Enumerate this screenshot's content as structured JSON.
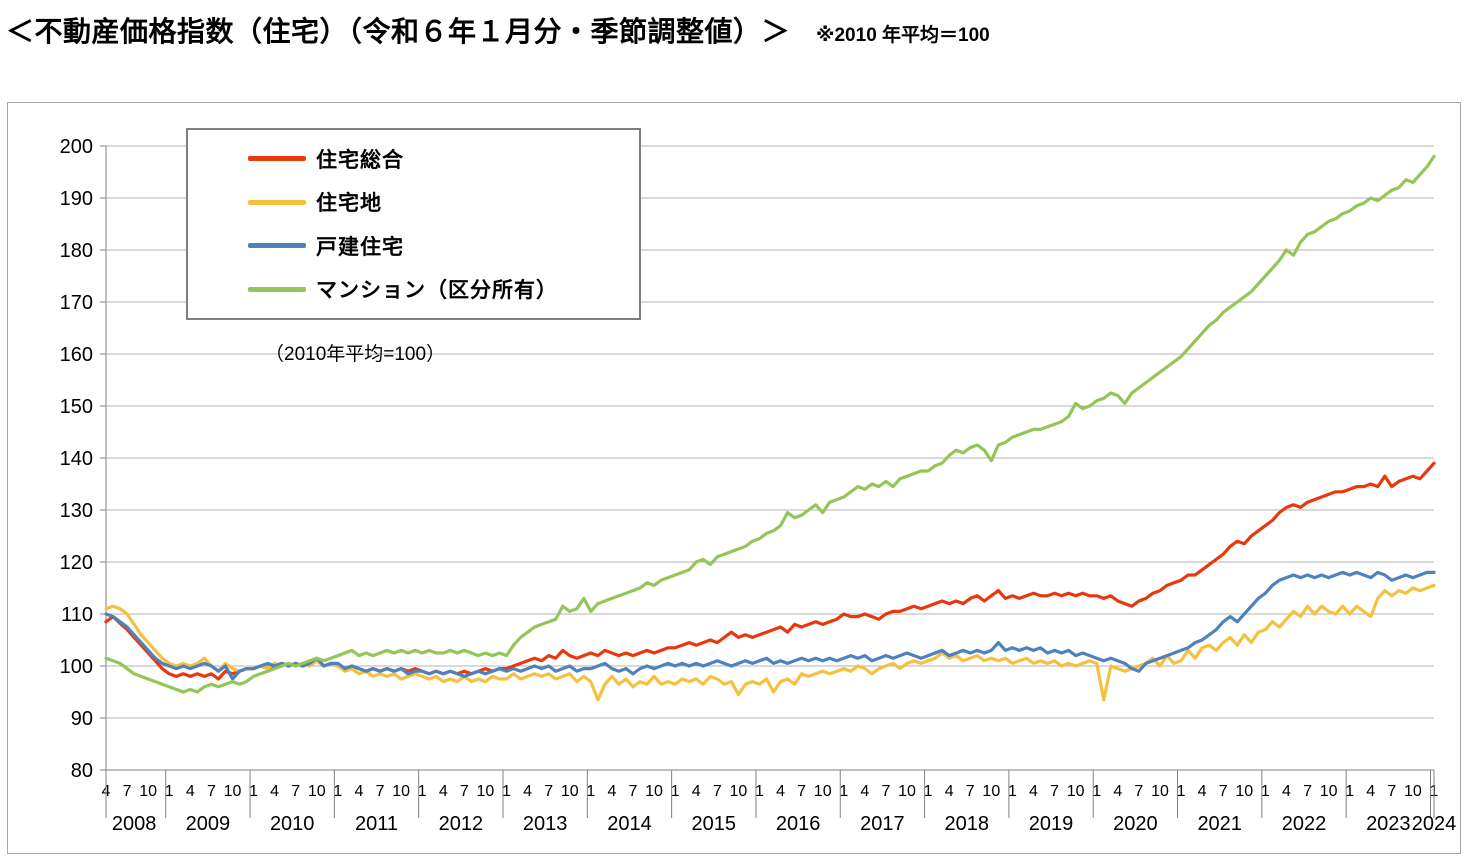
{
  "title": "＜不動産価格指数（住宅）（令和６年１月分・季節調整値）＞",
  "subtitle": "※2010 年平均＝100",
  "chart_data": {
    "type": "line",
    "note": "（2010年平均=100）",
    "ylim": [
      80,
      200
    ],
    "ytick_step": 10,
    "grid": true,
    "legend_position": "top-left",
    "x_start": "2008-04",
    "x_end": "2024-01",
    "month_tick_labels": [
      "4",
      "7",
      "10",
      "1"
    ],
    "years": [
      "2008",
      "2009",
      "2010",
      "2011",
      "2012",
      "2013",
      "2014",
      "2015",
      "2016",
      "2017",
      "2018",
      "2019",
      "2020",
      "2021",
      "2022",
      "2023",
      "2024"
    ],
    "series": [
      {
        "name": "住宅総合",
        "color": "#e8380d",
        "values": [
          108.5,
          109.5,
          108.2,
          107.0,
          105.5,
          104.0,
          102.5,
          101.0,
          99.5,
          98.5,
          98.0,
          98.5,
          98.0,
          98.5,
          98.0,
          98.5,
          97.5,
          99.0,
          98.5,
          99.0,
          99.5,
          99.5,
          100.0,
          99.5,
          100.0,
          100.5,
          100.0,
          100.5,
          100.0,
          100.5,
          101.0,
          100.0,
          100.5,
          100.0,
          99.5,
          100.0,
          99.5,
          99.0,
          99.5,
          99.0,
          99.5,
          99.0,
          99.5,
          99.0,
          99.5,
          99.0,
          98.5,
          99.0,
          98.5,
          99.0,
          98.5,
          99.0,
          98.5,
          99.0,
          99.5,
          99.0,
          99.5,
          99.5,
          100.0,
          100.5,
          101.0,
          101.5,
          101.0,
          102.0,
          101.5,
          103.0,
          102.0,
          101.5,
          102.0,
          102.5,
          102.0,
          103.0,
          102.5,
          102.0,
          102.5,
          102.0,
          102.5,
          103.0,
          102.5,
          103.0,
          103.5,
          103.5,
          104.0,
          104.5,
          104.0,
          104.5,
          105.0,
          104.5,
          105.5,
          106.5,
          105.5,
          106.0,
          105.5,
          106.0,
          106.5,
          107.0,
          107.5,
          106.5,
          108.0,
          107.5,
          108.0,
          108.5,
          108.0,
          108.5,
          109.0,
          110.0,
          109.5,
          109.5,
          110.0,
          109.5,
          109.0,
          110.0,
          110.5,
          110.5,
          111.0,
          111.5,
          111.0,
          111.5,
          112.0,
          112.5,
          112.0,
          112.5,
          112.0,
          113.0,
          113.5,
          112.5,
          113.5,
          114.5,
          113.0,
          113.5,
          113.0,
          113.5,
          114.0,
          113.5,
          113.5,
          114.0,
          113.5,
          114.0,
          113.5,
          114.0,
          113.5,
          113.5,
          113.0,
          113.5,
          112.5,
          112.0,
          111.5,
          112.5,
          113.0,
          114.0,
          114.5,
          115.5,
          116.0,
          116.5,
          117.5,
          117.5,
          118.5,
          119.5,
          120.5,
          121.5,
          123.0,
          124.0,
          123.5,
          125.0,
          126.0,
          127.0,
          128.0,
          129.5,
          130.5,
          131.0,
          130.5,
          131.5,
          132.0,
          132.5,
          133.0,
          133.5,
          133.5,
          134.0,
          134.5,
          134.5,
          135.0,
          134.5,
          136.5,
          134.5,
          135.5,
          136.0,
          136.5,
          136.0,
          137.5,
          139.0
        ]
      },
      {
        "name": "住宅地",
        "color": "#f5c040",
        "values": [
          111.0,
          111.5,
          111.0,
          110.0,
          108.0,
          106.0,
          104.5,
          103.0,
          101.5,
          100.5,
          100.0,
          100.5,
          100.0,
          100.5,
          101.5,
          100.0,
          99.0,
          100.5,
          99.5,
          99.0,
          99.5,
          99.5,
          100.0,
          99.5,
          100.5,
          100.0,
          100.5,
          100.0,
          100.5,
          100.0,
          101.0,
          100.0,
          100.5,
          100.0,
          99.0,
          99.5,
          98.5,
          99.0,
          98.0,
          98.5,
          98.0,
          98.5,
          97.5,
          98.0,
          98.5,
          98.0,
          97.5,
          98.0,
          97.0,
          97.5,
          97.0,
          98.0,
          97.0,
          97.5,
          97.0,
          98.0,
          97.5,
          97.5,
          98.5,
          97.5,
          98.0,
          98.5,
          98.0,
          98.5,
          97.5,
          98.0,
          98.5,
          97.0,
          98.0,
          97.0,
          93.5,
          96.5,
          98.0,
          96.5,
          97.5,
          96.0,
          97.0,
          96.5,
          98.0,
          96.5,
          97.0,
          96.5,
          97.5,
          97.0,
          97.5,
          96.5,
          98.0,
          97.5,
          96.5,
          97.0,
          94.5,
          96.5,
          97.0,
          96.5,
          97.5,
          95.0,
          97.0,
          97.5,
          96.5,
          98.5,
          98.0,
          98.5,
          99.0,
          98.5,
          99.0,
          99.5,
          99.0,
          100.0,
          99.5,
          98.5,
          99.5,
          100.0,
          100.5,
          99.5,
          100.5,
          101.0,
          100.5,
          101.0,
          101.5,
          102.5,
          101.5,
          102.0,
          101.0,
          101.5,
          102.0,
          101.0,
          101.5,
          101.0,
          101.5,
          100.5,
          101.0,
          101.5,
          100.5,
          101.0,
          100.5,
          101.0,
          100.0,
          100.5,
          100.0,
          100.5,
          101.0,
          100.5,
          93.5,
          100.0,
          99.5,
          99.0,
          99.5,
          100.0,
          100.5,
          101.5,
          100.0,
          102.0,
          100.5,
          101.0,
          103.0,
          101.5,
          103.5,
          104.0,
          103.0,
          104.5,
          105.5,
          104.0,
          106.0,
          104.5,
          106.5,
          107.0,
          108.5,
          107.5,
          109.0,
          110.5,
          109.5,
          111.5,
          110.0,
          111.5,
          110.5,
          110.0,
          111.5,
          110.0,
          111.5,
          110.5,
          109.5,
          113.0,
          114.5,
          113.5,
          114.5,
          114.0,
          115.0,
          114.5,
          115.0,
          115.5
        ]
      },
      {
        "name": "戸建住宅",
        "color": "#4f81bd",
        "values": [
          110.0,
          109.5,
          108.5,
          107.5,
          106.0,
          104.5,
          103.0,
          101.5,
          100.5,
          100.0,
          99.5,
          100.0,
          99.5,
          100.0,
          100.5,
          100.0,
          99.0,
          100.0,
          97.5,
          99.0,
          99.5,
          99.5,
          100.0,
          100.5,
          100.0,
          100.5,
          100.0,
          100.5,
          100.0,
          100.5,
          101.5,
          100.0,
          100.5,
          100.5,
          99.5,
          100.0,
          99.5,
          99.0,
          99.5,
          99.0,
          99.5,
          99.0,
          99.5,
          98.5,
          99.0,
          99.0,
          98.5,
          99.0,
          98.5,
          99.0,
          98.5,
          98.0,
          98.5,
          99.0,
          98.5,
          99.0,
          99.5,
          99.0,
          99.5,
          99.0,
          99.5,
          100.0,
          99.5,
          100.0,
          99.0,
          99.5,
          100.0,
          99.0,
          99.5,
          99.5,
          100.0,
          100.5,
          99.5,
          99.0,
          99.5,
          98.5,
          99.5,
          100.0,
          99.5,
          100.0,
          100.5,
          100.0,
          100.5,
          100.0,
          100.5,
          100.0,
          100.5,
          101.0,
          100.5,
          100.0,
          100.5,
          101.0,
          100.5,
          101.0,
          101.5,
          100.5,
          101.0,
          100.5,
          101.0,
          101.5,
          101.0,
          101.5,
          101.0,
          101.5,
          101.0,
          101.5,
          102.0,
          101.5,
          102.0,
          101.0,
          101.5,
          102.0,
          101.5,
          102.0,
          102.5,
          102.0,
          101.5,
          102.0,
          102.5,
          103.0,
          102.0,
          102.5,
          103.0,
          102.5,
          103.0,
          102.5,
          103.0,
          104.5,
          103.0,
          103.5,
          103.0,
          103.5,
          103.0,
          103.5,
          102.5,
          103.0,
          102.5,
          103.0,
          102.0,
          102.5,
          102.0,
          101.5,
          101.0,
          101.5,
          101.0,
          100.5,
          99.5,
          99.0,
          100.5,
          101.0,
          101.5,
          102.0,
          102.5,
          103.0,
          103.5,
          104.5,
          105.0,
          106.0,
          107.0,
          108.5,
          109.5,
          108.5,
          110.0,
          111.5,
          113.0,
          114.0,
          115.5,
          116.5,
          117.0,
          117.5,
          117.0,
          117.5,
          117.0,
          117.5,
          117.0,
          117.5,
          118.0,
          117.5,
          118.0,
          117.5,
          117.0,
          118.0,
          117.5,
          116.5,
          117.0,
          117.5,
          117.0,
          117.5,
          118.0,
          118.0
        ]
      },
      {
        "name": "マンション（区分所有）",
        "color": "#93c559",
        "values": [
          101.5,
          101.0,
          100.5,
          99.5,
          98.5,
          98.0,
          97.5,
          97.0,
          96.5,
          96.0,
          95.5,
          95.0,
          95.5,
          95.0,
          96.0,
          96.5,
          96.0,
          96.5,
          97.0,
          96.5,
          97.0,
          98.0,
          98.5,
          99.0,
          99.5,
          100.0,
          100.5,
          100.0,
          100.5,
          101.0,
          101.5,
          101.0,
          101.5,
          102.0,
          102.5,
          103.0,
          102.0,
          102.5,
          102.0,
          102.5,
          103.0,
          102.5,
          103.0,
          102.5,
          103.0,
          102.5,
          103.0,
          102.5,
          102.5,
          103.0,
          102.5,
          103.0,
          102.5,
          102.0,
          102.5,
          102.0,
          102.5,
          102.0,
          104.0,
          105.5,
          106.5,
          107.5,
          108.0,
          108.5,
          109.0,
          111.5,
          110.5,
          111.0,
          113.0,
          110.5,
          112.0,
          112.5,
          113.0,
          113.5,
          114.0,
          114.5,
          115.0,
          116.0,
          115.5,
          116.5,
          117.0,
          117.5,
          118.0,
          118.5,
          120.0,
          120.5,
          119.5,
          121.0,
          121.5,
          122.0,
          122.5,
          123.0,
          124.0,
          124.5,
          125.5,
          126.0,
          127.0,
          129.5,
          128.5,
          129.0,
          130.0,
          131.0,
          129.5,
          131.5,
          132.0,
          132.5,
          133.5,
          134.5,
          134.0,
          135.0,
          134.5,
          135.5,
          134.5,
          136.0,
          136.5,
          137.0,
          137.5,
          137.5,
          138.5,
          139.0,
          140.5,
          141.5,
          141.0,
          142.0,
          142.5,
          141.5,
          139.5,
          142.5,
          143.0,
          144.0,
          144.5,
          145.0,
          145.5,
          145.5,
          146.0,
          146.5,
          147.0,
          148.0,
          150.5,
          149.5,
          150.0,
          151.0,
          151.5,
          152.5,
          152.0,
          150.5,
          152.5,
          153.5,
          154.5,
          155.5,
          156.5,
          157.5,
          158.5,
          159.5,
          161.0,
          162.5,
          164.0,
          165.5,
          166.5,
          168.0,
          169.0,
          170.0,
          171.0,
          172.0,
          173.5,
          175.0,
          176.5,
          178.0,
          180.0,
          179.0,
          181.5,
          183.0,
          183.5,
          184.5,
          185.5,
          186.0,
          187.0,
          187.5,
          188.5,
          189.0,
          190.0,
          189.5,
          190.5,
          191.5,
          192.0,
          193.5,
          193.0,
          194.5,
          196.0,
          198.0
        ]
      }
    ]
  }
}
